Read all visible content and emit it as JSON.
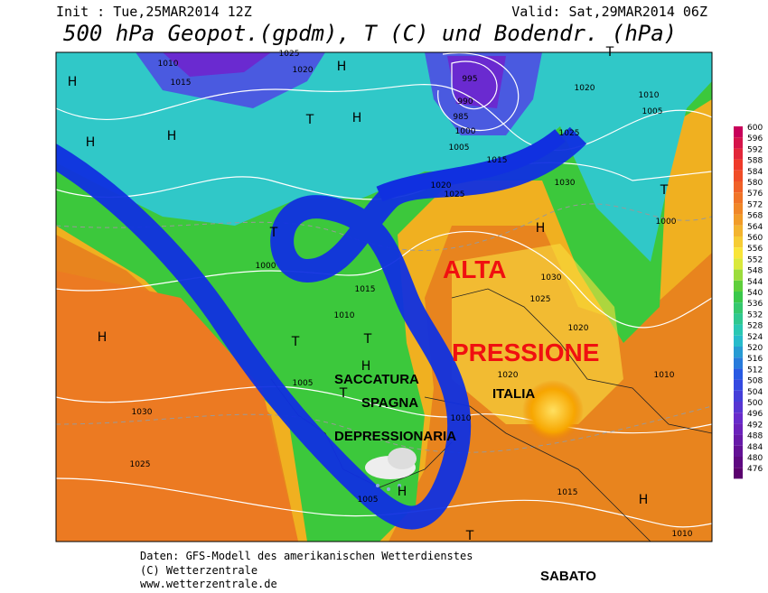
{
  "header": {
    "init": "Init : Tue,25MAR2014 12Z",
    "valid": "Valid: Sat,29MAR2014 06Z",
    "title": "500 hPa Geopot.(gpdm), T (C) und Bodendr. (hPa)"
  },
  "colorbar": {
    "values": [
      600,
      596,
      592,
      588,
      584,
      580,
      576,
      572,
      568,
      564,
      560,
      556,
      552,
      548,
      544,
      540,
      536,
      532,
      528,
      524,
      520,
      516,
      512,
      508,
      504,
      500,
      496,
      492,
      488,
      484,
      480,
      476
    ]
  },
  "annotations": {
    "alta": "ALTA",
    "pressione": "PRESSIONE",
    "saccatura": "SACCATURA",
    "spagna": "SPAGNA",
    "depressionaria": "DEPRESSIONARIA",
    "italia": "ITALIA",
    "sabato": "SABATO"
  },
  "isobar_labels": [
    1010,
    1015,
    1025,
    1020,
    995,
    990,
    985,
    1000,
    1005,
    1015,
    1020,
    1025,
    1030,
    1020,
    1010,
    1005,
    1000,
    1025,
    1030,
    1025,
    1020,
    1010,
    1030,
    1025,
    1010,
    1005,
    1015,
    1010,
    1000,
    1015,
    1010,
    1005,
    1020
  ],
  "pressure_centers": [
    "H",
    "H",
    "H",
    "H",
    "H",
    "H",
    "H",
    "H",
    "H",
    "H",
    "T",
    "T",
    "T",
    "T",
    "T",
    "T",
    "T",
    "T"
  ],
  "footer": {
    "line1": "Daten: GFS-Modell des amerikanischen Wetterdienstes",
    "line2": "(C) Wetterzentrale",
    "line3": "www.wetterzentrale.de"
  }
}
